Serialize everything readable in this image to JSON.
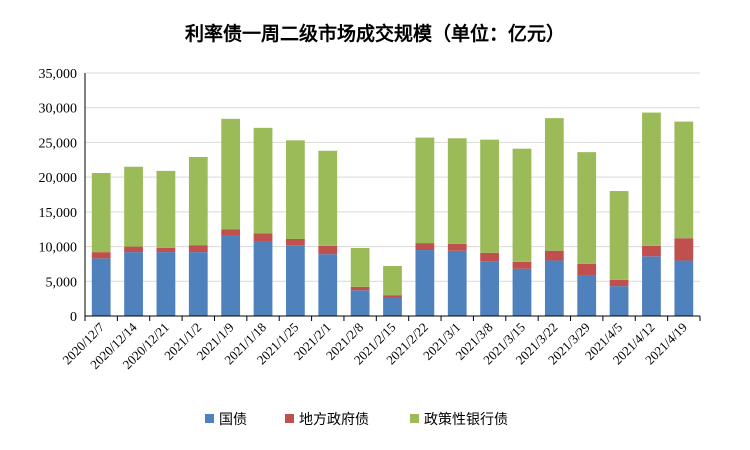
{
  "chart_data": {
    "type": "bar",
    "stacked": true,
    "title": "利率债一周二级市场成交规模（单位：亿元）",
    "categories": [
      "2020/12/7",
      "2020/12/14",
      "2020/12/21",
      "2021/1/2",
      "2021/1/9",
      "2021/1/18",
      "2021/1/25",
      "2021/2/1",
      "2021/2/8",
      "2021/2/15",
      "2021/2/22",
      "2021/3/1",
      "2021/3/8",
      "2021/3/15",
      "2021/3/22",
      "2021/3/29",
      "2021/4/5",
      "2021/4/12",
      "2021/4/19"
    ],
    "series": [
      {
        "name": "国债",
        "color": "#4f81bd",
        "values": [
          8300,
          9200,
          9200,
          9200,
          11600,
          10800,
          10200,
          8900,
          3700,
          2600,
          9500,
          9400,
          7900,
          6800,
          8000,
          5900,
          4300,
          8600,
          8000
        ]
      },
      {
        "name": "地方政府债",
        "color": "#c0504d",
        "values": [
          900,
          800,
          600,
          1000,
          900,
          1100,
          900,
          1200,
          500,
          400,
          1000,
          1000,
          1200,
          1000,
          1400,
          1600,
          900,
          1500,
          3200
        ]
      },
      {
        "name": "政策性银行债",
        "color": "#9bbb59",
        "values": [
          11400,
          11500,
          11100,
          12700,
          15900,
          15200,
          14200,
          13700,
          5600,
          4200,
          15200,
          15200,
          16300,
          16300,
          19100,
          16100,
          12800,
          19200,
          16800
        ]
      }
    ],
    "ylim": [
      0,
      35000
    ],
    "yticks": [
      0,
      5000,
      10000,
      15000,
      20000,
      25000,
      30000,
      35000
    ],
    "ytick_labels": [
      "0",
      "5,000",
      "10,000",
      "15,000",
      "20,000",
      "25,000",
      "30,000",
      "35,000"
    ],
    "grid": true,
    "legend_position": "bottom"
  }
}
